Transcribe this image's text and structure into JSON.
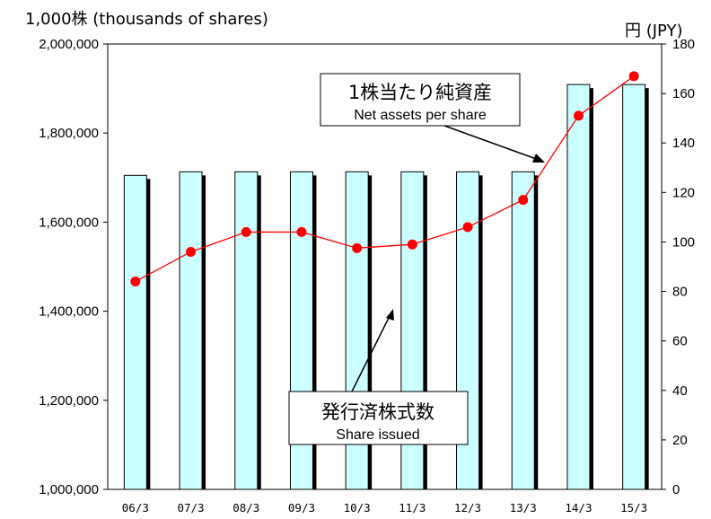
{
  "chart_data": {
    "type": "bar",
    "categories": [
      "06/3",
      "07/3",
      "08/3",
      "09/3",
      "10/3",
      "11/3",
      "12/3",
      "13/3",
      "14/3",
      "15/3"
    ],
    "series": [
      {
        "name": "発行済株式数 Share issued",
        "type": "bar",
        "axis": "left",
        "values": [
          1705000,
          1713000,
          1713000,
          1713000,
          1713000,
          1713000,
          1713000,
          1713000,
          1909000,
          1909000
        ]
      },
      {
        "name": "1株当たり純資産 Net assets per share",
        "type": "line",
        "axis": "right",
        "values": [
          84,
          96,
          104,
          104,
          97.5,
          99,
          106,
          117,
          151,
          167
        ]
      }
    ],
    "y_left": {
      "label": "1,000株 (thousands of shares)",
      "range": [
        1000000,
        2000000
      ],
      "ticks": [
        "1,000,000",
        "1,200,000",
        "1,400,000",
        "1,600,000",
        "1,800,000",
        "2,000,000"
      ]
    },
    "y_right": {
      "label": "円 (JPY)",
      "range": [
        0,
        180
      ],
      "ticks": [
        "0",
        "20",
        "40",
        "60",
        "80",
        "100",
        "120",
        "140",
        "160",
        "180"
      ]
    },
    "callouts": {
      "line": {
        "title": "1株当たり純資産",
        "subtitle": "Net assets per share"
      },
      "bar": {
        "title": "発行済株式数",
        "subtitle": "Share issued"
      }
    },
    "colors": {
      "bar_fill": "#ccffff",
      "bar_shadow": "#000000",
      "line": "#ff0000",
      "marker": "#ff0000"
    },
    "grid": false,
    "legend": "callouts"
  }
}
